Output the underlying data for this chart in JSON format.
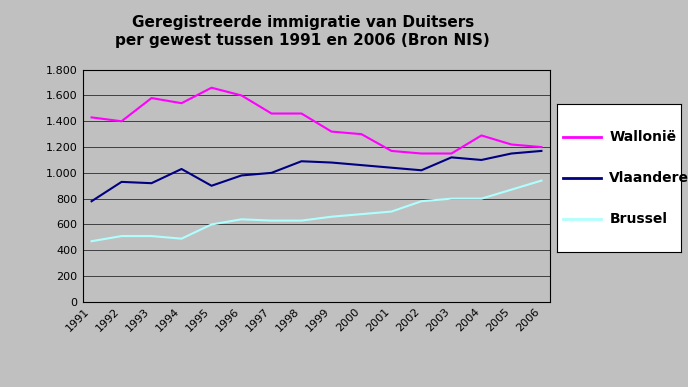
{
  "title": "Geregistreerde immigratie van Duitsers\nper gewest tussen 1991 en 2006 (Bron NIS)",
  "years": [
    1991,
    1992,
    1993,
    1994,
    1995,
    1996,
    1997,
    1998,
    1999,
    2000,
    2001,
    2002,
    2003,
    2004,
    2005,
    2006
  ],
  "wallonie": [
    1430,
    1400,
    1580,
    1540,
    1660,
    1600,
    1460,
    1460,
    1320,
    1300,
    1170,
    1150,
    1150,
    1290,
    1220,
    1200
  ],
  "vlaanderen": [
    780,
    930,
    920,
    1030,
    900,
    980,
    1000,
    1090,
    1080,
    1060,
    1040,
    1020,
    1120,
    1100,
    1150,
    1170
  ],
  "brussel": [
    470,
    510,
    510,
    490,
    600,
    640,
    630,
    630,
    660,
    680,
    700,
    780,
    800,
    800,
    870,
    940
  ],
  "wallonie_color": "#FF00FF",
  "vlaanderen_color": "#000080",
  "brussel_color": "#AFFFFF",
  "fig_bg_color": "#C0C0C0",
  "plot_bg_color": "#C0C0C0",
  "ylim": [
    0,
    1800
  ],
  "ytick_step": 200,
  "legend_labels": [
    "Wallonië",
    "Vlaanderen",
    "Brussel"
  ],
  "title_fontsize": 11,
  "tick_fontsize": 8,
  "legend_fontsize": 10,
  "linewidth": 1.5
}
